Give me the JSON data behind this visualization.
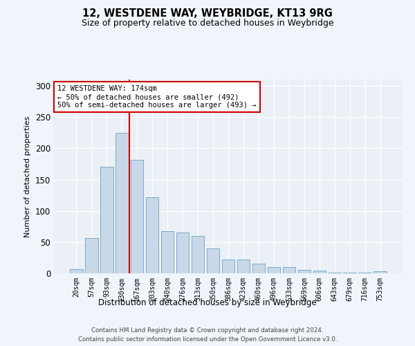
{
  "title1": "12, WESTDENE WAY, WEYBRIDGE, KT13 9RG",
  "title2": "Size of property relative to detached houses in Weybridge",
  "xlabel": "Distribution of detached houses by size in Weybridge",
  "ylabel": "Number of detached properties",
  "categories": [
    "20sqm",
    "57sqm",
    "93sqm",
    "130sqm",
    "167sqm",
    "203sqm",
    "240sqm",
    "276sqm",
    "313sqm",
    "350sqm",
    "386sqm",
    "423sqm",
    "460sqm",
    "496sqm",
    "533sqm",
    "569sqm",
    "606sqm",
    "643sqm",
    "679sqm",
    "716sqm",
    "753sqm"
  ],
  "values": [
    7,
    57,
    170,
    225,
    182,
    122,
    67,
    65,
    60,
    40,
    22,
    22,
    16,
    10,
    10,
    5,
    4,
    1,
    1,
    1,
    3
  ],
  "bar_color": "#c8d8e8",
  "bar_edge_color": "#7aaac8",
  "vline_x_idx": 4,
  "vline_color": "#cc0000",
  "annotation_text": "12 WESTDENE WAY: 174sqm\n← 50% of detached houses are smaller (492)\n50% of semi-detached houses are larger (493) →",
  "annotation_box_color": "#ffffff",
  "annotation_box_edge": "#cc0000",
  "ylim": [
    0,
    310
  ],
  "yticks": [
    0,
    50,
    100,
    150,
    200,
    250,
    300
  ],
  "bg_color": "#eaf0f6",
  "fig_bg_color": "#f0f5fb",
  "footer1": "Contains HM Land Registry data © Crown copyright and database right 2024.",
  "footer2": "Contains public sector information licensed under the Open Government Licence v3.0."
}
